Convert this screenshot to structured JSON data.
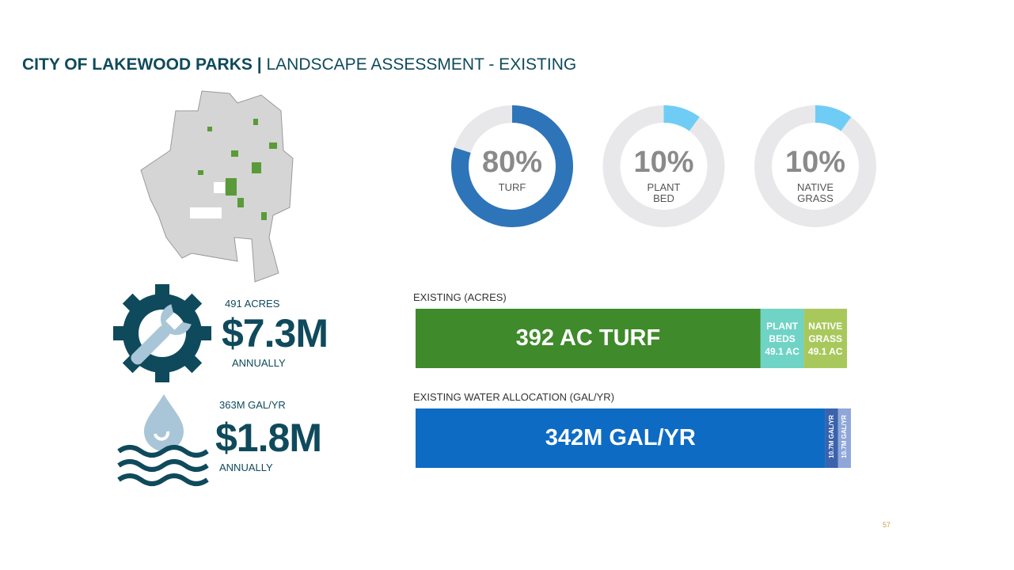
{
  "header": {
    "title_bold": "CITY OF LAKEWOOD PARKS",
    "separator": "|",
    "title": "LANDSCAPE ASSESSMENT - EXISTING"
  },
  "stats": [
    {
      "label": "491 ACRES",
      "value": "$7.3M",
      "note": "ANNUALLY"
    },
    {
      "label": "363M GAL/YR",
      "value": "$1.8M",
      "note": "ANNUALLY"
    }
  ],
  "page_number": "57",
  "chart_data": [
    {
      "type": "pie",
      "values": [
        80
      ],
      "value_labels": [
        "80%"
      ],
      "categories": [
        "TURF"
      ],
      "color": "#2e74b9"
    },
    {
      "type": "pie",
      "values": [
        10
      ],
      "value_labels": [
        "10%"
      ],
      "categories": [
        "PLANT BED"
      ],
      "color": "#6fcdf5"
    },
    {
      "type": "pie",
      "values": [
        10
      ],
      "value_labels": [
        "10%"
      ],
      "categories": [
        "NATIVE GRASS"
      ],
      "color": "#6fcdf5"
    },
    {
      "type": "bar",
      "stacked": true,
      "horizontal": true,
      "title": "EXISTING (ACRES)",
      "values": [
        392,
        49.1,
        49.1
      ],
      "value_labels": [
        "392 AC TURF",
        "PLANT BEDS 49.1 AC",
        "NATIVE GRASS 49.1 AC"
      ],
      "colors": [
        "#3f8a2a",
        "#6fd3c6",
        "#a8c85c"
      ]
    },
    {
      "type": "bar",
      "stacked": true,
      "horizontal": true,
      "title": "EXISTING WATER ALLOCATION (GAL/YR)",
      "values": [
        342,
        10.7,
        10.7
      ],
      "value_labels": [
        "342M GAL/YR",
        "10.7M GAL/YR",
        "10.7M GAL/YR"
      ],
      "colors": [
        "#0d6bc4",
        "#3b62ad",
        "#8fa7d8"
      ]
    }
  ]
}
